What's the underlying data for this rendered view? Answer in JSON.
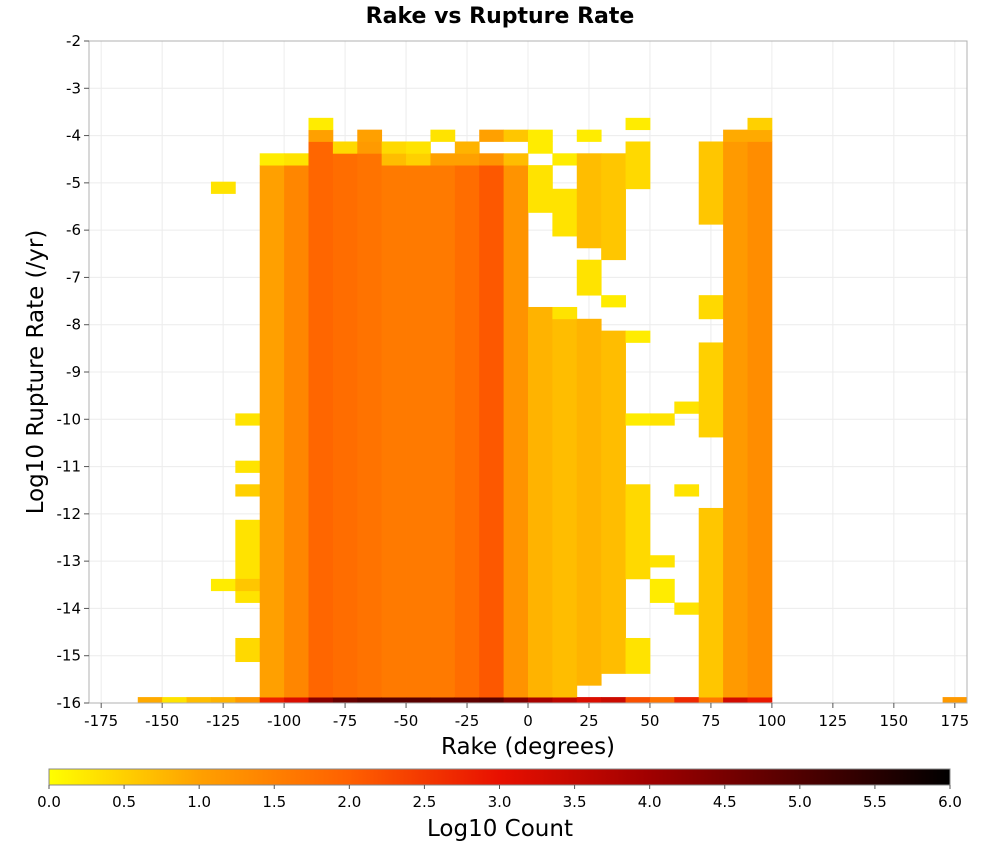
{
  "chart_data": {
    "type": "heatmap",
    "title": "Rake vs Rupture Rate",
    "xlabel": "Rake (degrees)",
    "ylabel": "Log10 Rupture Rate (/yr)",
    "xlim": [
      -180,
      180
    ],
    "ylim": [
      -16,
      -2
    ],
    "x_ticks": [
      "-175",
      "-150",
      "-125",
      "-100",
      "-75",
      "-50",
      "-25",
      "0",
      "25",
      "50",
      "75",
      "100",
      "125",
      "150",
      "175"
    ],
    "x_tick_values": [
      -175,
      -150,
      -125,
      -100,
      -75,
      -50,
      -25,
      0,
      25,
      50,
      75,
      100,
      125,
      150,
      175
    ],
    "y_ticks": [
      "-2",
      "-3",
      "-4",
      "-5",
      "-6",
      "-7",
      "-8",
      "-9",
      "-10",
      "-11",
      "-12",
      "-13",
      "-14",
      "-15",
      "-16"
    ],
    "y_tick_values": [
      -2,
      -3,
      -4,
      -5,
      -6,
      -7,
      -8,
      -9,
      -10,
      -11,
      -12,
      -13,
      -14,
      -15,
      -16
    ],
    "grid": true,
    "x_bin_width": 10,
    "y_bin_width": 0.25,
    "colorbar": {
      "label": "Log10 Count",
      "range": [
        0.0,
        6.0
      ],
      "ticks": [
        "0.0",
        "0.5",
        "1.0",
        "1.5",
        "2.0",
        "2.5",
        "3.0",
        "3.5",
        "4.0",
        "4.5",
        "5.0",
        "5.5",
        "6.0"
      ],
      "tick_values": [
        0.0,
        0.5,
        1.0,
        1.5,
        2.0,
        2.5,
        3.0,
        3.5,
        4.0,
        4.5,
        5.0,
        5.5,
        6.0
      ],
      "colors": [
        "#ffff00",
        "#ffa000",
        "#ff6000",
        "#e81000",
        "#a00000",
        "#500000",
        "#000000"
      ]
    },
    "columns": [
      {
        "x": -155,
        "cells": [
          [
            -16,
            -16,
            0.9
          ]
        ]
      },
      {
        "x": -145,
        "cells": [
          [
            -16,
            -16,
            0.3
          ]
        ]
      },
      {
        "x": -135,
        "cells": [
          [
            -16,
            -16,
            0.7
          ]
        ]
      },
      {
        "x": -125,
        "cells": [
          [
            -16,
            -16,
            0.8
          ],
          [
            -13.5,
            -13.5,
            0.2
          ],
          [
            -5.1,
            -5.1,
            0.3
          ]
        ]
      },
      {
        "x": -115,
        "cells": [
          [
            -16,
            -16,
            1.1
          ],
          [
            -15,
            -14.75,
            0.4
          ],
          [
            -13.75,
            -12.25,
            0.3
          ],
          [
            -11.5,
            -11.5,
            0.5
          ],
          [
            -11,
            -11,
            0.3
          ],
          [
            -10,
            -10,
            0.3
          ],
          [
            -13.5,
            -13.5,
            0.6
          ]
        ]
      },
      {
        "x": -105,
        "cells": [
          [
            -16,
            -16,
            2.8
          ],
          [
            -15.75,
            -4.75,
            1.0
          ],
          [
            -4.5,
            -4.5,
            0.2
          ]
        ]
      },
      {
        "x": -95,
        "cells": [
          [
            -16,
            -16,
            3.2
          ],
          [
            -15.75,
            -4.75,
            1.4
          ],
          [
            -4.5,
            -4.5,
            0.3
          ]
        ]
      },
      {
        "x": -85,
        "cells": [
          [
            -16,
            -16,
            4.3
          ],
          [
            -15.75,
            -4.25,
            1.9
          ],
          [
            -4,
            -4,
            1.0
          ],
          [
            -3.75,
            -3.75,
            0.2
          ]
        ]
      },
      {
        "x": -75,
        "cells": [
          [
            -16,
            -16,
            4.7
          ],
          [
            -15.75,
            -4.5,
            1.8
          ],
          [
            -4.25,
            -4.25,
            0.4
          ]
        ]
      },
      {
        "x": -65,
        "cells": [
          [
            -16,
            -16,
            4.9
          ],
          [
            -15.75,
            -4.5,
            1.7
          ],
          [
            -4.25,
            -4.25,
            1.1
          ],
          [
            -4,
            -4,
            1.0
          ]
        ]
      },
      {
        "x": -55,
        "cells": [
          [
            -16,
            -16,
            4.9
          ],
          [
            -15.75,
            -4.75,
            1.6
          ],
          [
            -4.5,
            -4.5,
            0.7
          ],
          [
            -4.25,
            -4.25,
            0.4
          ]
        ]
      },
      {
        "x": -45,
        "cells": [
          [
            -16,
            -16,
            4.9
          ],
          [
            -15.75,
            -4.75,
            1.6
          ],
          [
            -4.5,
            -4.5,
            0.5
          ],
          [
            -4.25,
            -4.25,
            0.3
          ]
        ]
      },
      {
        "x": -35,
        "cells": [
          [
            -16,
            -16,
            4.8
          ],
          [
            -15.75,
            -4.75,
            1.6
          ],
          [
            -4.5,
            -4.5,
            1.0
          ],
          [
            -4,
            -4,
            0.3
          ]
        ]
      },
      {
        "x": -25,
        "cells": [
          [
            -16,
            -16,
            4.8
          ],
          [
            -15.75,
            -4.75,
            1.8
          ],
          [
            -4.5,
            -4.5,
            1.0
          ],
          [
            -4.25,
            -4.25,
            0.8
          ]
        ]
      },
      {
        "x": -15,
        "cells": [
          [
            -16,
            -16,
            4.9
          ],
          [
            -15.75,
            -4.75,
            2.1
          ],
          [
            -4.5,
            -4.5,
            1.2
          ],
          [
            -4,
            -4,
            1.0
          ]
        ]
      },
      {
        "x": -5,
        "cells": [
          [
            -16,
            -16,
            4.4
          ],
          [
            -15.75,
            -4.75,
            1.2
          ],
          [
            -4.5,
            -4.5,
            0.7
          ],
          [
            -4,
            -4,
            0.6
          ]
        ]
      },
      {
        "x": 5,
        "cells": [
          [
            -16,
            -16,
            3.9
          ],
          [
            -15.75,
            -7.75,
            0.8
          ],
          [
            -5.5,
            -4.75,
            0.3
          ],
          [
            -4.25,
            -4.25,
            0.2
          ],
          [
            -4,
            -4,
            0.2
          ]
        ]
      },
      {
        "x": 15,
        "cells": [
          [
            -16,
            -16,
            3.6
          ],
          [
            -15.75,
            -8,
            0.7
          ],
          [
            -7.75,
            -7.75,
            0.3
          ],
          [
            -6,
            -5.25,
            0.3
          ],
          [
            -4.5,
            -4.5,
            0.2
          ]
        ]
      },
      {
        "x": 25,
        "cells": [
          [
            -16,
            -16,
            3.2
          ],
          [
            -15.5,
            -8,
            0.8
          ],
          [
            -7.25,
            -6.75,
            0.3
          ],
          [
            -6.25,
            -4.5,
            0.7
          ],
          [
            -4,
            -4,
            0.2
          ]
        ]
      },
      {
        "x": 35,
        "cells": [
          [
            -16,
            -16,
            3.4
          ],
          [
            -15.25,
            -8.25,
            0.7
          ],
          [
            -7.5,
            -7.5,
            0.2
          ],
          [
            -6.5,
            -4.5,
            0.6
          ]
        ]
      },
      {
        "x": 45,
        "cells": [
          [
            -16,
            -16,
            2.2
          ],
          [
            -15.25,
            -14.75,
            0.3
          ],
          [
            -13.25,
            -11.5,
            0.4
          ],
          [
            -10,
            -10,
            0.2
          ],
          [
            -8.25,
            -8.25,
            0.2
          ],
          [
            -5,
            -4.25,
            0.4
          ],
          [
            -3.75,
            -3.75,
            0.2
          ]
        ]
      },
      {
        "x": 55,
        "cells": [
          [
            -16,
            -16,
            1.7
          ],
          [
            -13.75,
            -13.5,
            0.2
          ],
          [
            -13,
            -13,
            0.3
          ],
          [
            -10,
            -10,
            0.3
          ]
        ]
      },
      {
        "x": 65,
        "cells": [
          [
            -16,
            -16,
            2.7
          ],
          [
            -14,
            -14,
            0.3
          ],
          [
            -11.5,
            -11.5,
            0.3
          ],
          [
            -9.75,
            -9.75,
            0.3
          ]
        ]
      },
      {
        "x": 75,
        "cells": [
          [
            -16,
            -16,
            1.6
          ],
          [
            -15.75,
            -12,
            0.6
          ],
          [
            -10.25,
            -8.5,
            0.5
          ],
          [
            -7.75,
            -7.5,
            0.4
          ],
          [
            -5.75,
            -4.25,
            0.6
          ]
        ]
      },
      {
        "x": 85,
        "cells": [
          [
            -16,
            -16,
            3.3
          ],
          [
            -15.75,
            -4.25,
            1.1
          ],
          [
            -4,
            -4,
            0.9
          ]
        ]
      },
      {
        "x": 95,
        "cells": [
          [
            -16,
            -16,
            2.9
          ],
          [
            -15.75,
            -4.25,
            1.3
          ],
          [
            -4,
            -4,
            0.9
          ],
          [
            -3.75,
            -3.75,
            0.5
          ]
        ]
      },
      {
        "x": 175,
        "cells": [
          [
            -16,
            -16,
            1.1
          ]
        ]
      }
    ]
  }
}
